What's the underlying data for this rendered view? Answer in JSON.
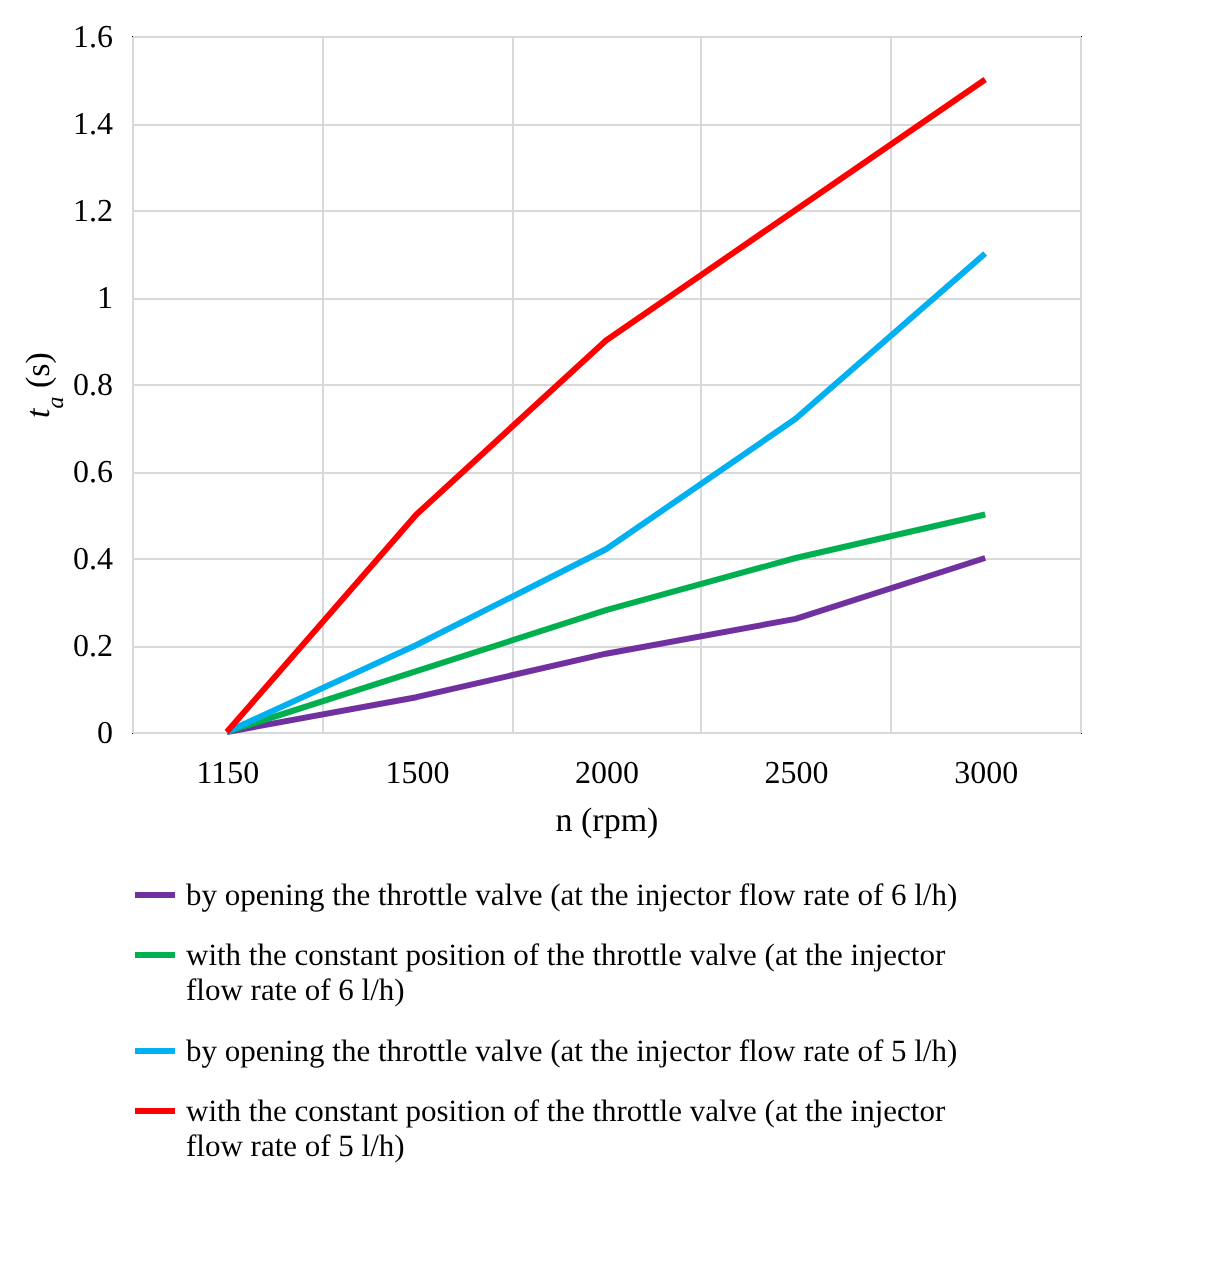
{
  "chart_data": {
    "type": "line",
    "xlabel": "n (rpm)",
    "ylabel": "t$_{a}$ (s)",
    "categories": [
      "1150",
      "1500",
      "2000",
      "2500",
      "3000"
    ],
    "series": [
      {
        "name": "by opening the throttle valve (at the injector flow rate of 6 l/h)",
        "color": "#7030a0",
        "values": [
          0,
          0.08,
          0.18,
          0.26,
          0.4
        ]
      },
      {
        "name": "with the constant position of the throttle valve (at the injector flow rate of 6 l/h)",
        "color": "#00b050",
        "values": [
          0,
          0.14,
          0.28,
          0.4,
          0.5
        ]
      },
      {
        "name": "by opening the throttle valve (at the injector flow rate of 5 l/h)",
        "color": "#00b0f0",
        "values": [
          0,
          0.2,
          0.42,
          0.72,
          1.1
        ]
      },
      {
        "name": "with the constant position of the throttle valve (at the injector flow rate of 5 l/h)",
        "color": "#ff0000",
        "values": [
          0,
          0.5,
          0.9,
          1.2,
          1.5
        ]
      }
    ],
    "ylim": [
      0,
      1.6
    ],
    "yticks": [
      {
        "value": 0,
        "label": "0"
      },
      0.2,
      0.4,
      0.6,
      0.8,
      {
        "value": 1,
        "label": "1"
      },
      1.2,
      1.4,
      1.6
    ],
    "grid": true,
    "legend": "bottom",
    "marker": "none",
    "line_style": "solid"
  }
}
